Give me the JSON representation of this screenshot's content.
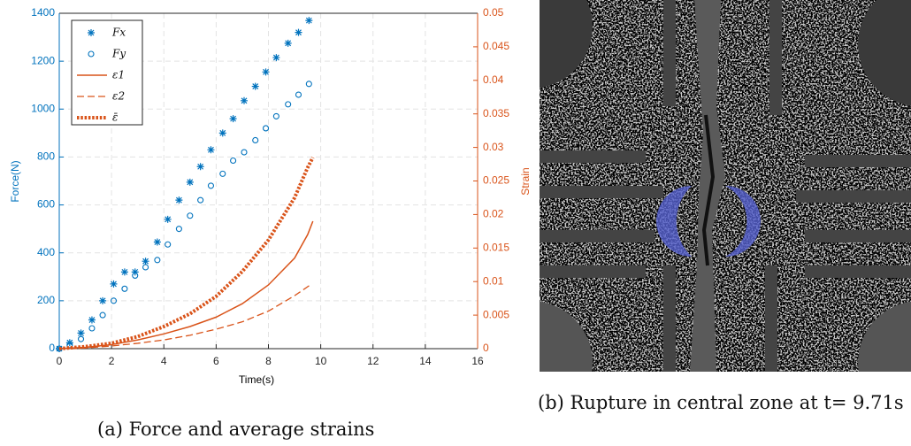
{
  "chart_data": {
    "type": "dual-axis-scatter-line",
    "xlabel": "Time(s)",
    "ylabel": "Force(N)",
    "y2label": "Strain",
    "xlim": [
      0,
      16
    ],
    "xticks": [
      0,
      2,
      4,
      6,
      8,
      10,
      12,
      14,
      16
    ],
    "ylim": [
      0,
      1400
    ],
    "yticks": [
      0,
      200,
      400,
      600,
      800,
      1000,
      1200,
      1400
    ],
    "y2lim": [
      0,
      0.05
    ],
    "y2ticks": [
      0,
      0.005,
      0.01,
      0.015,
      0.02,
      0.025,
      0.03,
      0.035,
      0.04,
      0.045,
      0.05
    ],
    "grid": true,
    "legend": "upper left",
    "series": [
      {
        "name": "Fx",
        "color": "#0072BD",
        "marker": "star",
        "axis": "y",
        "x": [
          0,
          0.4,
          0.83,
          1.25,
          1.66,
          2.08,
          2.5,
          2.9,
          3.3,
          3.75,
          4.15,
          4.58,
          5,
          5.4,
          5.8,
          6.25,
          6.65,
          7.07,
          7.5,
          7.9,
          8.3,
          8.75,
          9.15,
          9.55
        ],
        "values": [
          0,
          25,
          65,
          120,
          200,
          270,
          320,
          320,
          365,
          445,
          540,
          620,
          695,
          760,
          830,
          900,
          960,
          1035,
          1095,
          1155,
          1215,
          1275,
          1320,
          1370
        ]
      },
      {
        "name": "Fy",
        "color": "#0072BD",
        "marker": "circle",
        "axis": "y",
        "x": [
          0,
          0.4,
          0.83,
          1.25,
          1.66,
          2.08,
          2.5,
          2.9,
          3.3,
          3.75,
          4.15,
          4.58,
          5,
          5.4,
          5.8,
          6.25,
          6.65,
          7.07,
          7.5,
          7.9,
          8.3,
          8.75,
          9.15,
          9.55
        ],
        "values": [
          0,
          15,
          40,
          85,
          140,
          200,
          250,
          305,
          340,
          370,
          435,
          500,
          555,
          620,
          680,
          730,
          785,
          820,
          870,
          920,
          970,
          1020,
          1060,
          1105
        ]
      },
      {
        "name": "ε1",
        "color": "#D95319",
        "line": "solid",
        "axis": "y2",
        "x": [
          0,
          1,
          2,
          3,
          4,
          5,
          6,
          7,
          8,
          9,
          9.5,
          9.7
        ],
        "values": [
          0,
          0.0002,
          0.0006,
          0.0013,
          0.0022,
          0.0033,
          0.0047,
          0.0067,
          0.0095,
          0.0135,
          0.017,
          0.019
        ]
      },
      {
        "name": "ε2",
        "color": "#D95319",
        "line": "dashed",
        "axis": "y2",
        "x": [
          0,
          1,
          2,
          3,
          4,
          5,
          6,
          7,
          8,
          9,
          9.6
        ],
        "values": [
          0,
          0.0001,
          0.0004,
          0.0008,
          0.0013,
          0.002,
          0.0029,
          0.004,
          0.0056,
          0.0079,
          0.0095
        ]
      },
      {
        "name": "ε̄",
        "color": "#D95319",
        "line": "dotted",
        "axis": "y2",
        "x": [
          0,
          1,
          2,
          3,
          4,
          5,
          6,
          7,
          8,
          9,
          9.5,
          9.7
        ],
        "values": [
          0,
          0.0003,
          0.0008,
          0.0018,
          0.0033,
          0.0052,
          0.0078,
          0.0115,
          0.0162,
          0.0225,
          0.027,
          0.0285
        ]
      }
    ]
  },
  "captions": {
    "a": "(a) Force and average strains",
    "b": "(b) Rupture in central zone at t= 9.71s"
  }
}
